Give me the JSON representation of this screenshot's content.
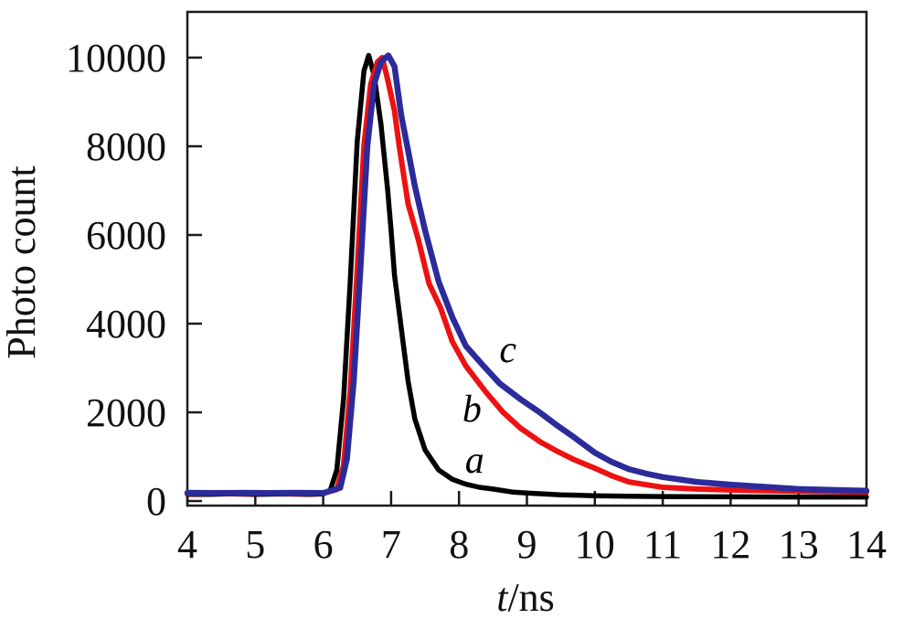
{
  "figure": {
    "background": "#ffffff",
    "frame_color": "#1a1a1a"
  },
  "chart_data": {
    "type": "line",
    "title": "",
    "xlabel": "t/ns",
    "xlabel_variable": "t",
    "xlabel_unit": "/ns",
    "ylabel": "Photo count",
    "xlim": [
      4,
      14
    ],
    "ylim": [
      0,
      11000
    ],
    "xticks": [
      4,
      5,
      6,
      7,
      8,
      9,
      10,
      11,
      12,
      13,
      14
    ],
    "yticks": [
      0,
      2000,
      4000,
      6000,
      8000,
      10000
    ],
    "grid": false,
    "legend_position": "inline-curve-labels",
    "series": [
      {
        "name": "a",
        "color": "#000000",
        "stroke_width": 5.5,
        "peak": {
          "t": 6.67,
          "count": 10050
        },
        "points": [
          [
            4.0,
            150
          ],
          [
            4.3,
            150
          ],
          [
            4.6,
            160
          ],
          [
            5.0,
            150
          ],
          [
            5.4,
            160
          ],
          [
            5.8,
            150
          ],
          [
            6.0,
            160
          ],
          [
            6.1,
            220
          ],
          [
            6.2,
            700
          ],
          [
            6.3,
            2300
          ],
          [
            6.4,
            5000
          ],
          [
            6.5,
            8100
          ],
          [
            6.6,
            9700
          ],
          [
            6.67,
            10050
          ],
          [
            6.75,
            9600
          ],
          [
            6.85,
            8500
          ],
          [
            6.95,
            7000
          ],
          [
            7.0,
            6100
          ],
          [
            7.05,
            5100
          ],
          [
            7.15,
            3900
          ],
          [
            7.25,
            2700
          ],
          [
            7.35,
            1850
          ],
          [
            7.5,
            1150
          ],
          [
            7.7,
            700
          ],
          [
            7.9,
            490
          ],
          [
            8.1,
            380
          ],
          [
            8.3,
            310
          ],
          [
            8.5,
            270
          ],
          [
            8.8,
            200
          ],
          [
            9.0,
            180
          ],
          [
            9.5,
            140
          ],
          [
            10.0,
            120
          ],
          [
            10.5,
            110
          ],
          [
            11.0,
            100
          ],
          [
            12.0,
            95
          ],
          [
            13.0,
            90
          ],
          [
            14.0,
            90
          ]
        ]
      },
      {
        "name": "b",
        "color": "#ee1111",
        "stroke_width": 6,
        "peak": {
          "t": 6.87,
          "count": 10000
        },
        "points": [
          [
            4.0,
            170
          ],
          [
            4.4,
            175
          ],
          [
            4.8,
            170
          ],
          [
            5.2,
            175
          ],
          [
            5.6,
            170
          ],
          [
            6.0,
            175
          ],
          [
            6.2,
            260
          ],
          [
            6.3,
            800
          ],
          [
            6.4,
            2500
          ],
          [
            6.5,
            5200
          ],
          [
            6.6,
            8000
          ],
          [
            6.7,
            9400
          ],
          [
            6.8,
            9900
          ],
          [
            6.87,
            10000
          ],
          [
            6.95,
            9500
          ],
          [
            7.05,
            8800
          ],
          [
            7.12,
            8000
          ],
          [
            7.25,
            6700
          ],
          [
            7.4,
            5900
          ],
          [
            7.56,
            4900
          ],
          [
            7.73,
            4350
          ],
          [
            7.9,
            3600
          ],
          [
            8.1,
            3050
          ],
          [
            8.4,
            2450
          ],
          [
            8.65,
            2000
          ],
          [
            8.9,
            1650
          ],
          [
            9.2,
            1330
          ],
          [
            9.45,
            1120
          ],
          [
            9.7,
            930
          ],
          [
            10.0,
            740
          ],
          [
            10.25,
            570
          ],
          [
            10.5,
            430
          ],
          [
            10.75,
            370
          ],
          [
            11.0,
            310
          ],
          [
            11.5,
            270
          ],
          [
            12.0,
            250
          ],
          [
            12.5,
            235
          ],
          [
            13.0,
            220
          ],
          [
            13.5,
            210
          ],
          [
            14.0,
            200
          ]
        ]
      },
      {
        "name": "c",
        "color": "#2b2b9b",
        "stroke_width": 6.5,
        "peak": {
          "t": 6.96,
          "count": 10050
        },
        "points": [
          [
            4.0,
            185
          ],
          [
            4.4,
            180
          ],
          [
            4.8,
            185
          ],
          [
            5.2,
            180
          ],
          [
            5.6,
            185
          ],
          [
            6.0,
            180
          ],
          [
            6.25,
            300
          ],
          [
            6.35,
            950
          ],
          [
            6.45,
            2700
          ],
          [
            6.55,
            5300
          ],
          [
            6.65,
            8000
          ],
          [
            6.75,
            9400
          ],
          [
            6.85,
            9900
          ],
          [
            6.96,
            10050
          ],
          [
            7.05,
            9800
          ],
          [
            7.15,
            8700
          ],
          [
            7.25,
            7900
          ],
          [
            7.35,
            7100
          ],
          [
            7.5,
            6100
          ],
          [
            7.7,
            4950
          ],
          [
            7.9,
            4150
          ],
          [
            8.1,
            3500
          ],
          [
            8.36,
            3050
          ],
          [
            8.6,
            2650
          ],
          [
            8.9,
            2300
          ],
          [
            9.17,
            2020
          ],
          [
            9.45,
            1700
          ],
          [
            9.7,
            1430
          ],
          [
            10.0,
            1090
          ],
          [
            10.25,
            880
          ],
          [
            10.5,
            720
          ],
          [
            10.75,
            620
          ],
          [
            11.0,
            540
          ],
          [
            11.5,
            430
          ],
          [
            12.0,
            370
          ],
          [
            12.5,
            320
          ],
          [
            13.0,
            270
          ],
          [
            13.5,
            250
          ],
          [
            14.0,
            230
          ]
        ]
      }
    ],
    "annotations": [
      {
        "text": "a",
        "t": 8.23,
        "count": 930,
        "color": "#000000"
      },
      {
        "text": "b",
        "t": 8.19,
        "count": 2080,
        "color": "#000000"
      },
      {
        "text": "c",
        "t": 8.72,
        "count": 3420,
        "color": "#000000"
      }
    ]
  }
}
